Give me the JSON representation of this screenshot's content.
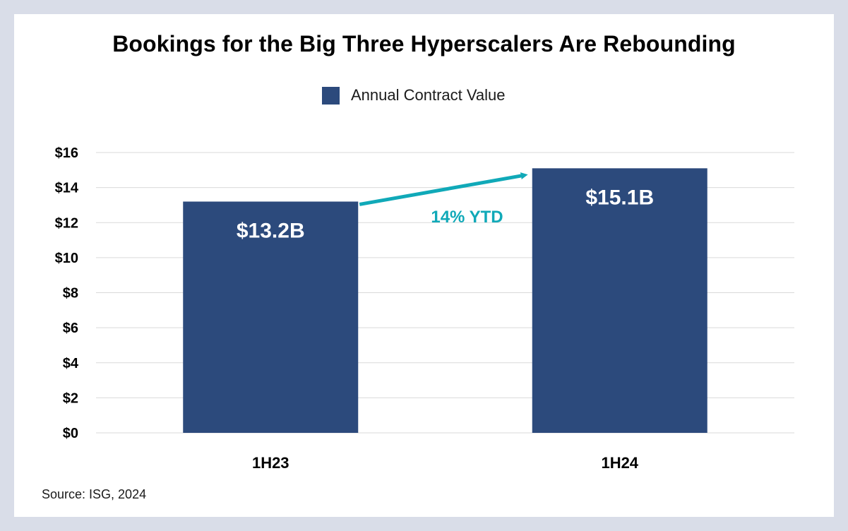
{
  "chart_data": {
    "type": "bar",
    "title": "Bookings for the Big Three Hyperscalers Are Rebounding",
    "categories": [
      "1H23",
      "1H24"
    ],
    "series": [
      {
        "name": "Annual Contract Value",
        "values": [
          13.2,
          15.1
        ],
        "data_labels": [
          "$13.2B",
          "$15.1B"
        ]
      }
    ],
    "yticks": [
      "$0",
      "$2",
      "$4",
      "$6",
      "$8",
      "$10",
      "$12",
      "$14",
      "$16"
    ],
    "ylim": [
      0,
      16
    ],
    "grid": true,
    "legend": "top-center",
    "annotation": {
      "text": "14% YTD",
      "from": "1H23",
      "to": "1H24"
    },
    "source": "Source: ISG, 2024"
  },
  "colors": {
    "bar": "#2c4a7c",
    "arrow": "#10a9b8",
    "grid": "#d9d9d9",
    "frame": "#d9dde8"
  }
}
